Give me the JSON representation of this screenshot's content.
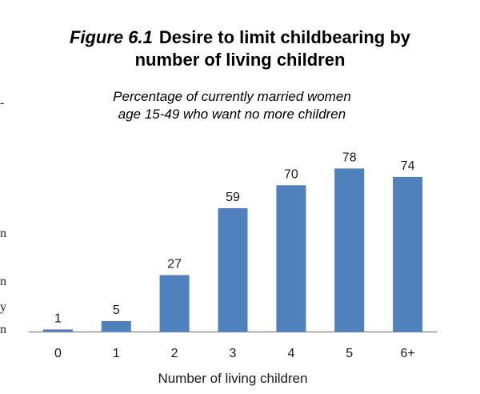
{
  "chart_data": {
    "type": "bar",
    "figure_number": "Figure 6.1",
    "title_line1": "Desire to limit childbearing by",
    "title_line2": "number of living children",
    "subtitle_line1": "Percentage of currently married women",
    "subtitle_line2": "age 15-49 who want no more children",
    "categories": [
      "0",
      "1",
      "2",
      "3",
      "4",
      "5",
      "6+"
    ],
    "values": [
      1,
      5,
      27,
      59,
      70,
      78,
      74
    ],
    "xlabel": "Number of living children",
    "ylabel": "",
    "ylim": [
      0,
      100
    ],
    "grid": false,
    "legend": "none",
    "bar_color": "#4f81bd"
  },
  "margin_fragments": [
    "-",
    "n",
    "n",
    "y",
    "n"
  ]
}
